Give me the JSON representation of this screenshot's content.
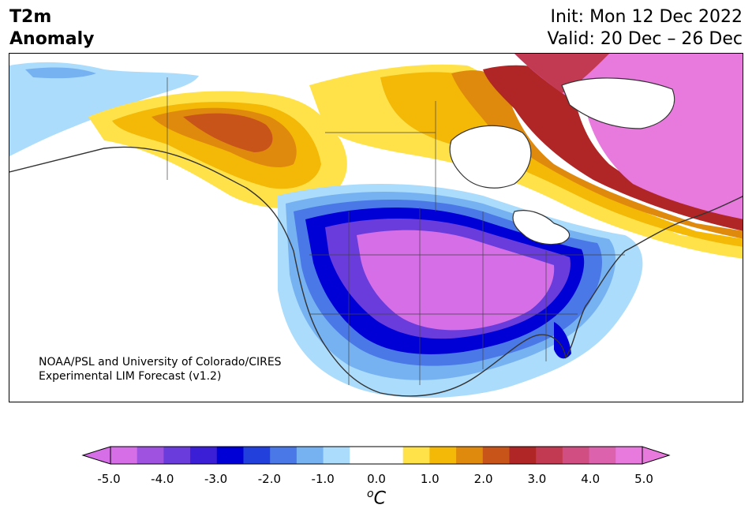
{
  "header": {
    "title_line1": "T2m",
    "title_line2": "Anomaly",
    "init": "Init: Mon 12 Dec 2022",
    "valid": "Valid: 20 Dec – 26 Dec"
  },
  "credit": {
    "line1": "NOAA/PSL and University of Colorado/CIRES",
    "line2": "Experimental LIM Forecast (v1.2)"
  },
  "colorbar": {
    "ticks": [
      "-5.0",
      "-4.0",
      "-3.0",
      "-2.0",
      "-1.0",
      "0.0",
      "1.0",
      "2.0",
      "3.0",
      "4.0",
      "5.0"
    ],
    "unit_sup": "o",
    "unit_main": "C",
    "colors": [
      "#d66ee8",
      "#9e52df",
      "#6a3cdc",
      "#3a1fd6",
      "#0000d6",
      "#2240dc",
      "#4a78e6",
      "#76b2f2",
      "#acdcfb",
      "#ffffff",
      "#ffffff",
      "#ffe24a",
      "#f4b806",
      "#df8a0c",
      "#c8541a",
      "#b02626",
      "#c23a52",
      "#d04e82",
      "#dc62ae",
      "#e87ade"
    ]
  }
}
